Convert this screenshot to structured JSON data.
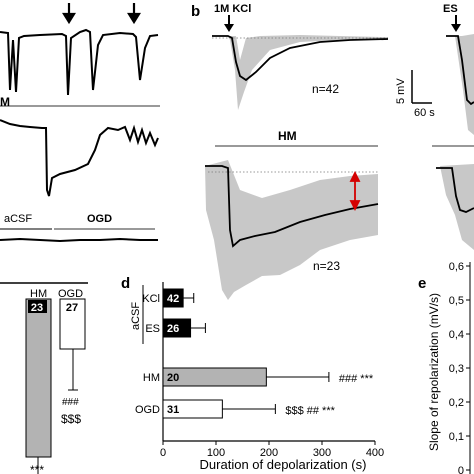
{
  "panels": {
    "b": {
      "letter": "b",
      "kcl_label": "1M KCl",
      "n_top": "n=42",
      "scalebar_v": "5 mV",
      "scalebar_t": "60 s",
      "hm_label": "HM",
      "n_bottom": "n=23"
    },
    "a": {
      "hm_label": "M",
      "acsf_label": "aCSF",
      "ogd_label": "OGD"
    },
    "es_label": "ES",
    "c": {
      "bar_labels": [
        "HM",
        "OGD"
      ],
      "n": [
        "23",
        "27"
      ],
      "annot_ogd": [
        "###",
        "$$$"
      ],
      "annot_hm": "***"
    },
    "d": {
      "letter": "d"
    },
    "e": {
      "letter": "e",
      "ylabel": "Slope of repolarization (mV/s)",
      "yticks": [
        "0",
        "0,1",
        "0,2",
        "0,3",
        "0,4",
        "0,5",
        "0,6"
      ]
    }
  },
  "chart_data": [
    {
      "type": "bar",
      "orientation": "horizontal",
      "group_label": "aCSF",
      "categories": [
        "KCl",
        "ES",
        "HM",
        "OGD"
      ],
      "n": [
        "42",
        "26",
        "20",
        "31"
      ],
      "values": [
        38,
        52,
        195,
        112
      ],
      "errors": [
        20,
        28,
        118,
        100
      ],
      "bar_colors": [
        "#000000",
        "#000000",
        "#b3b3b3",
        "#ffffff"
      ],
      "annotations": [
        "",
        "",
        "### ***",
        "$$$ ## ***"
      ],
      "xlabel": "Duration of depolarization (s)",
      "xticks": [
        "0",
        "100",
        "200",
        "300",
        "400"
      ],
      "xlim": [
        0,
        400
      ]
    }
  ],
  "colors": {
    "sd_fill": "#c8c8c8",
    "hm_bar": "#b3b3b3",
    "arrow": "#d40000"
  }
}
